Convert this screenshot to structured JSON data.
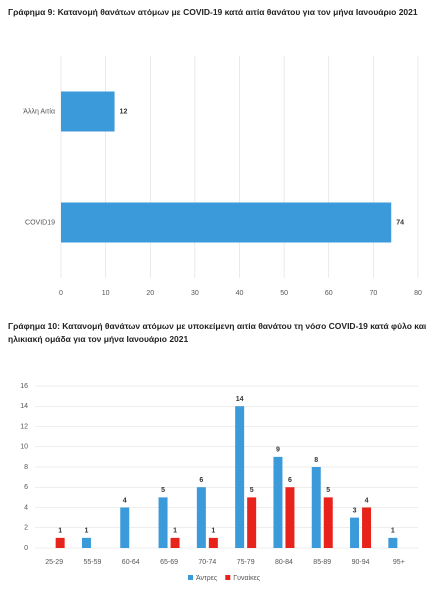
{
  "chart_data": [
    {
      "type": "bar",
      "orientation": "horizontal",
      "title": "Γράφημα 9: Κατανομή θανάτων ατόμων με COVID-19 κατά αιτία θανάτου για τον μήνα Ιανουάριο 2021",
      "categories": [
        "Άλλη Αιτία",
        "COVID19"
      ],
      "values": [
        12,
        74
      ],
      "color": "#3b9ad9",
      "xlim": [
        0,
        80
      ],
      "xticks": [
        0,
        10,
        20,
        30,
        40,
        50,
        60,
        70,
        80
      ],
      "grid": true
    },
    {
      "type": "bar",
      "orientation": "vertical",
      "title": "Γράφημα 10: Κατανομή θανάτων ατόμων με υποκείμενη αιτία θανάτου τη νόσο COVID-19 κατά φύλο και ηλικιακή ομάδα για τον μήνα Ιανουάριο 2021",
      "categories": [
        "25-29",
        "55-59",
        "60-64",
        "65-69",
        "70-74",
        "75-79",
        "80-84",
        "85-89",
        "90-94",
        "95+"
      ],
      "series": [
        {
          "name": "Άντρες",
          "color": "#3b9ad9",
          "values": [
            null,
            1,
            4,
            5,
            6,
            14,
            9,
            8,
            3,
            1
          ]
        },
        {
          "name": "Γυναίκες",
          "color": "#e8231c",
          "values": [
            1,
            null,
            null,
            1,
            1,
            5,
            6,
            5,
            4,
            null
          ]
        }
      ],
      "ylim": [
        0,
        16
      ],
      "yticks": [
        0,
        2,
        4,
        6,
        8,
        10,
        12,
        14,
        16
      ],
      "grid": true,
      "legend": "bottom"
    }
  ]
}
